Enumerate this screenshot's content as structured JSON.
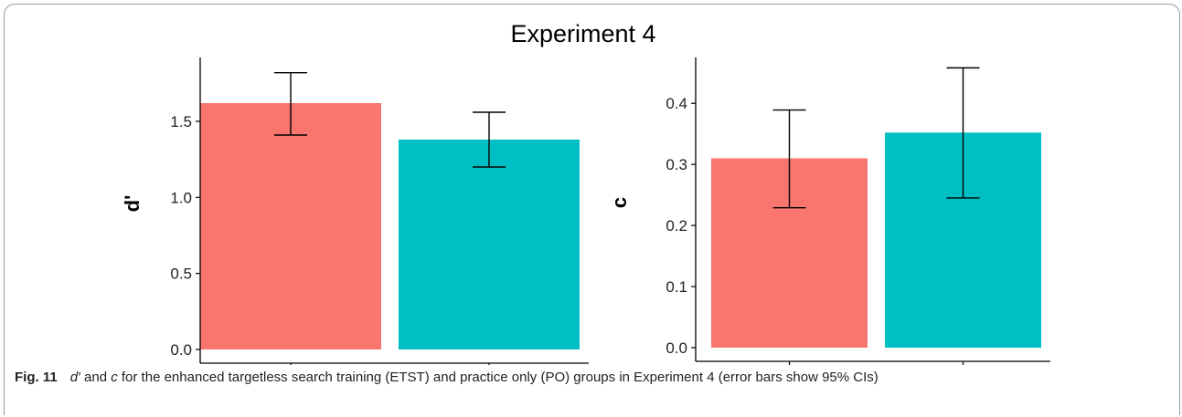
{
  "figure": {
    "title": "Experiment 4",
    "caption": {
      "label": "Fig. 11",
      "sym1": "d′",
      "t1": " and ",
      "sym2": "c",
      "t2": " for the enhanced targetless search training (ETST) and practice only (PO) groups in Experiment 4 (error bars show 95% CIs)"
    }
  },
  "colors": {
    "ETST": "#f8766d",
    "PO": "#00bfc4",
    "axis": "#000000",
    "errorbar": "#000000"
  },
  "chart_data": [
    {
      "type": "bar",
      "categories": [
        "ETST",
        "PO"
      ],
      "values": [
        1.62,
        1.38
      ],
      "ci_low": [
        1.41,
        1.2
      ],
      "ci_high": [
        1.82,
        1.56
      ],
      "ylabel": "d'",
      "xlabel": "",
      "ylim": [
        0,
        1.92
      ],
      "yticks": [
        "0.0",
        "0.5",
        "1.0",
        "1.5"
      ],
      "ytick_values": [
        0,
        0.5,
        1.0,
        1.5
      ],
      "grid": false
    },
    {
      "type": "bar",
      "categories": [
        "ETST",
        "PO"
      ],
      "values": [
        0.31,
        0.352
      ],
      "ci_low": [
        0.229,
        0.245
      ],
      "ci_high": [
        0.389,
        0.458
      ],
      "ylabel": "c",
      "xlabel": "",
      "ylim": [
        0,
        0.475
      ],
      "yticks": [
        "0.0",
        "0.1",
        "0.2",
        "0.3",
        "0.4"
      ],
      "ytick_values": [
        0,
        0.1,
        0.2,
        0.3,
        0.4
      ],
      "grid": false
    }
  ]
}
